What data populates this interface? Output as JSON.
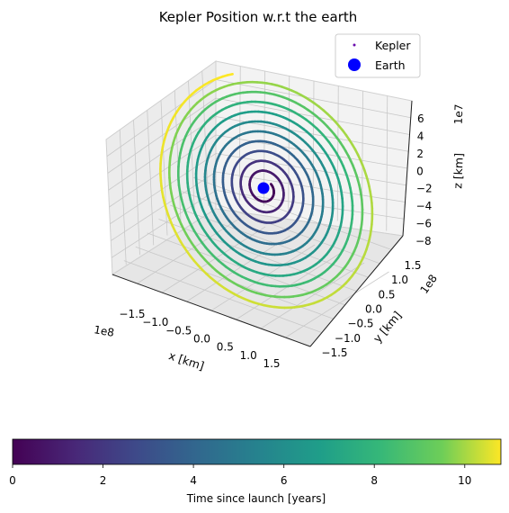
{
  "chart_data": {
    "type": "scatter",
    "title": "Kepler Position w.r.t the earth",
    "xlabel": "x [km]",
    "ylabel": "y [km]",
    "zlabel": "z [km]",
    "x_scale_label": "1e8",
    "y_scale_label": "1e8",
    "z_scale_label": "1e7",
    "x_ticks": [
      "−1.5",
      "−1.0",
      "−0.5",
      "0.0",
      "0.5",
      "1.0",
      "1.5"
    ],
    "y_ticks": [
      "1.5",
      "1.0",
      "0.5",
      "0.0",
      "−0.5",
      "−1.0",
      "−1.5"
    ],
    "z_ticks": [
      "6",
      "4",
      "2",
      "0",
      "−2",
      "−4",
      "−6",
      "−8"
    ],
    "legend": [
      {
        "name": "Kepler",
        "marker": "dot",
        "color": "#6a0dad"
      },
      {
        "name": "Earth",
        "marker": "circle",
        "color": "#0000ff"
      }
    ],
    "legend_placement": "top-right",
    "grid": true,
    "colorbar": {
      "label": "Time since launch [years]",
      "ticks": [
        "0",
        "2",
        "4",
        "6",
        "8",
        "10"
      ],
      "range": [
        0,
        10.8
      ],
      "colormap": "viridis"
    },
    "series": [
      {
        "name": "Kepler",
        "note_values": "spiral orbit, radius grows with time",
        "t_range_years": [
          0,
          10.8
        ]
      },
      {
        "name": "Earth",
        "x": 0,
        "y": 0,
        "z": 0
      }
    ]
  }
}
